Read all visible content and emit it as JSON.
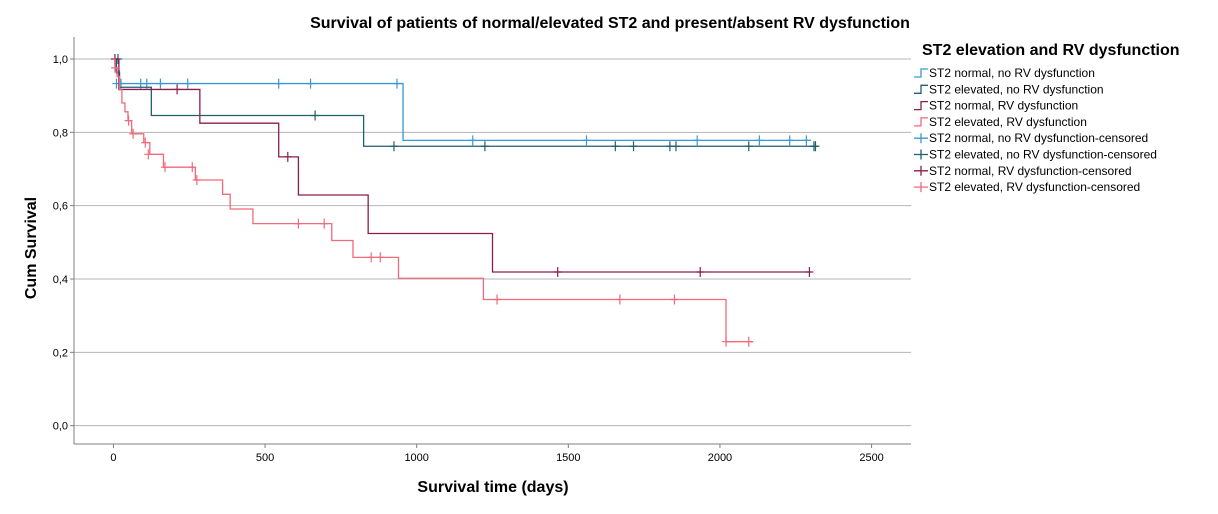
{
  "chart_data": {
    "type": "line",
    "title": "Survival of patients of normal/elevated ST2 and present/absent RV dysfunction",
    "xlabel": "Survival time (days)",
    "ylabel": "Cum Survival",
    "xlim": [
      -130,
      2630
    ],
    "ylim": [
      -0.05,
      1.06
    ],
    "x_ticks": [
      0,
      500,
      1000,
      1500,
      2000,
      2500
    ],
    "y_ticks": [
      0.0,
      0.2,
      0.4,
      0.6,
      0.8,
      1.0
    ],
    "x_tick_labels": [
      "0",
      "500",
      "1000",
      "1500",
      "2000",
      "2500"
    ],
    "y_tick_labels": [
      "0,0",
      "0,2",
      "0,4",
      "0,6",
      "0,8",
      "1,0"
    ],
    "grid": "horizontal",
    "legend_title": "ST2 elevation and RV dysfunction",
    "legend_position": "right",
    "series": [
      {
        "name": "ST2 normal, no RV dysfunction",
        "color": "#3b97d3",
        "step_x": [
          0,
          8,
          20,
          955,
          2300
        ],
        "step_y": [
          1.0,
          0.967,
          0.933,
          0.778,
          0.778
        ],
        "censor_x": [
          10,
          25,
          90,
          110,
          155,
          245,
          545,
          650,
          935,
          1185,
          1560,
          1925,
          2130,
          2230,
          2285
        ],
        "censor_y": [
          0.933,
          0.933,
          0.933,
          0.933,
          0.933,
          0.933,
          0.933,
          0.933,
          0.933,
          0.778,
          0.778,
          0.778,
          0.778,
          0.778,
          0.778
        ]
      },
      {
        "name": "ST2 elevated, no RV dysfunction",
        "color": "#1f5f6e",
        "step_x": [
          0,
          10,
          20,
          125,
          825,
          2320
        ],
        "step_y": [
          1.0,
          0.962,
          0.923,
          0.846,
          0.762,
          0.762
        ],
        "censor_x": [
          15,
          665,
          925,
          1225,
          1655,
          1715,
          1835,
          1855,
          2095,
          2310,
          2315
        ],
        "censor_y": [
          1.0,
          0.846,
          0.762,
          0.762,
          0.762,
          0.762,
          0.762,
          0.762,
          0.762,
          0.762,
          0.762
        ]
      },
      {
        "name": "ST2 normal, RV dysfunction",
        "color": "#8b1d4d",
        "step_x": [
          0,
          18,
          285,
          545,
          610,
          840,
          1250,
          2300
        ],
        "step_y": [
          1.0,
          0.917,
          0.825,
          0.733,
          0.629,
          0.524,
          0.419,
          0.419
        ],
        "censor_x": [
          5,
          210,
          575,
          1465,
          1935,
          2295
        ],
        "censor_y": [
          1.0,
          0.917,
          0.733,
          0.419,
          0.419,
          0.419
        ]
      },
      {
        "name": "ST2 elevated, RV dysfunction",
        "color": "#f06a7a",
        "step_x": [
          0,
          5,
          12,
          20,
          28,
          38,
          48,
          60,
          100,
          120,
          165,
          270,
          360,
          385,
          460,
          720,
          790,
          940,
          1220,
          2020,
          2110
        ],
        "step_y": [
          1.0,
          0.976,
          0.952,
          0.916,
          0.88,
          0.856,
          0.832,
          0.796,
          0.772,
          0.74,
          0.705,
          0.67,
          0.631,
          0.591,
          0.551,
          0.505,
          0.459,
          0.402,
          0.344,
          0.229,
          0.229
        ],
        "censor_x": [
          5,
          50,
          65,
          105,
          115,
          170,
          260,
          275,
          610,
          695,
          850,
          880,
          1265,
          1670,
          1850,
          2020,
          2095
        ],
        "censor_y": [
          0.976,
          0.832,
          0.796,
          0.772,
          0.74,
          0.705,
          0.705,
          0.67,
          0.551,
          0.551,
          0.459,
          0.459,
          0.344,
          0.344,
          0.344,
          0.229,
          0.229
        ]
      }
    ],
    "legend_entries": [
      {
        "label": "ST2 normal, no RV dysfunction",
        "series": 0,
        "style": "line"
      },
      {
        "label": "ST2 elevated, no RV dysfunction",
        "series": 1,
        "style": "line"
      },
      {
        "label": "ST2 normal, RV dysfunction",
        "series": 2,
        "style": "line"
      },
      {
        "label": "ST2 elevated, RV dysfunction",
        "series": 3,
        "style": "line"
      },
      {
        "label": "ST2 normal, no RV dysfunction-censored",
        "series": 0,
        "style": "censor"
      },
      {
        "label": "ST2 elevated, no RV dysfunction-censored",
        "series": 1,
        "style": "censor"
      },
      {
        "label": "ST2 normal, RV dysfunction-censored",
        "series": 2,
        "style": "censor"
      },
      {
        "label": "ST2 elevated, RV dysfunction-censored",
        "series": 3,
        "style": "censor"
      }
    ]
  }
}
